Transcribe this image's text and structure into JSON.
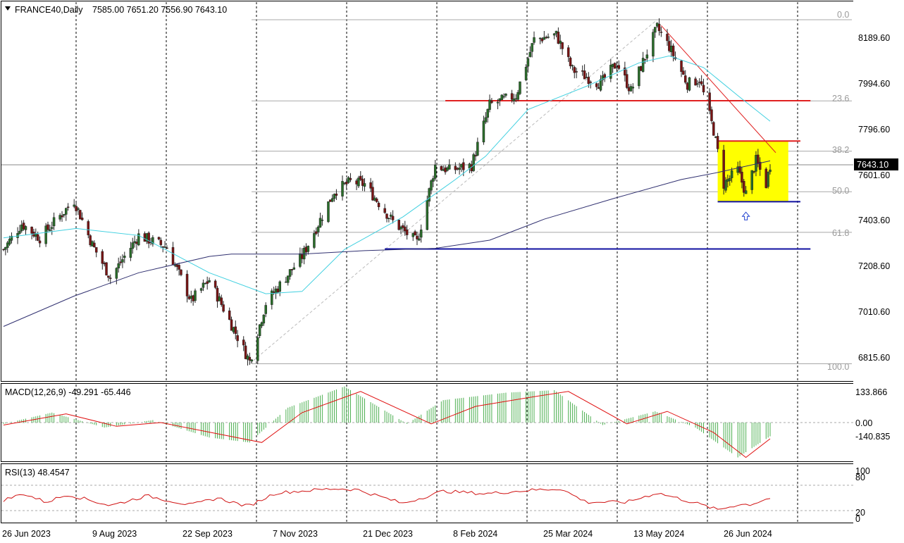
{
  "header": {
    "symbol": "FRANCE40,Daily",
    "ohlc": "7585.00 7651.20 7556.90 7643.10"
  },
  "price_axis": {
    "labels": [
      "8189.60",
      "7994.60",
      "7796.60",
      "7601.60",
      "7403.60",
      "7208.60",
      "7010.60",
      "6815.60"
    ],
    "current_price": "7643.10"
  },
  "fib_levels": [
    "0.0",
    "23.6",
    "38.2",
    "50.0",
    "61.8",
    "100.0"
  ],
  "time_axis": {
    "labels": [
      "26 Jun 2023",
      "9 Aug 2023",
      "22 Sep 2023",
      "7 Nov 2023",
      "21 Dec 2023",
      "8 Feb 2024",
      "25 Mar 2024",
      "13 May 2024",
      "26 Jun 2024"
    ]
  },
  "macd": {
    "label": "MACD(12,26,9) -49.291 -65.446",
    "axis_labels": [
      "133.866",
      "0.00",
      "-140.835"
    ]
  },
  "rsi": {
    "label": "RSI(13) 48.4547",
    "axis_labels": [
      "100",
      "80",
      "20",
      "0"
    ]
  },
  "colors": {
    "bull_candle": "#2a6e2a",
    "bear_candle": "#7a1414",
    "ma_fast": "#40d0e0",
    "ma_slow": "#303070",
    "support_line": "#1010a0",
    "resistance_line": "#e02020",
    "range_box": "#ffff00",
    "macd_hist": "#4caf50",
    "macd_signal": "#e01010",
    "rsi_line": "#d01010",
    "arrow": "#2040d0"
  },
  "chart_data": {
    "type": "candlestick",
    "title": "FRANCE40,Daily",
    "timeframe": "Daily",
    "last_ohlc": {
      "open": 7585.0,
      "high": 7651.2,
      "low": 7556.9,
      "close": 7643.1
    },
    "ylim": [
      6760,
      8290
    ],
    "x_range": [
      "2023-06-26",
      "2024-07-10"
    ],
    "anchor_points": [
      {
        "date": "2023-06-26",
        "price": 7280
      },
      {
        "date": "2023-07-05",
        "price": 7390
      },
      {
        "date": "2023-07-14",
        "price": 7330
      },
      {
        "date": "2023-07-31",
        "price": 7490
      },
      {
        "date": "2023-08-09",
        "price": 7300
      },
      {
        "date": "2023-08-18",
        "price": 7160
      },
      {
        "date": "2023-09-01",
        "price": 7340
      },
      {
        "date": "2023-09-15",
        "price": 7290
      },
      {
        "date": "2023-09-27",
        "price": 7060
      },
      {
        "date": "2023-10-06",
        "price": 7150
      },
      {
        "date": "2023-10-26",
        "price": 6800
      },
      {
        "date": "2023-11-03",
        "price": 7050
      },
      {
        "date": "2023-11-21",
        "price": 7250
      },
      {
        "date": "2023-12-07",
        "price": 7530
      },
      {
        "date": "2023-12-15",
        "price": 7570
      },
      {
        "date": "2023-12-22",
        "price": 7560
      },
      {
        "date": "2024-01-05",
        "price": 7400
      },
      {
        "date": "2024-01-17",
        "price": 7310
      },
      {
        "date": "2024-01-26",
        "price": 7640
      },
      {
        "date": "2024-02-02",
        "price": 7620
      },
      {
        "date": "2024-02-13",
        "price": 7640
      },
      {
        "date": "2024-02-22",
        "price": 7900
      },
      {
        "date": "2024-03-06",
        "price": 7940
      },
      {
        "date": "2024-03-15",
        "price": 8180
      },
      {
        "date": "2024-03-26",
        "price": 8200
      },
      {
        "date": "2024-04-03",
        "price": 8050
      },
      {
        "date": "2024-04-17",
        "price": 7990
      },
      {
        "date": "2024-04-25",
        "price": 8080
      },
      {
        "date": "2024-05-02",
        "price": 7960
      },
      {
        "date": "2024-05-15",
        "price": 8230
      },
      {
        "date": "2024-05-21",
        "price": 8150
      },
      {
        "date": "2024-05-30",
        "price": 7990
      },
      {
        "date": "2024-06-05",
        "price": 8010
      },
      {
        "date": "2024-06-12",
        "price": 7790
      },
      {
        "date": "2024-06-17",
        "price": 7560
      },
      {
        "date": "2024-06-24",
        "price": 7620
      },
      {
        "date": "2024-06-28",
        "price": 7520
      },
      {
        "date": "2024-07-03",
        "price": 7660
      },
      {
        "date": "2024-07-08",
        "price": 7560
      },
      {
        "date": "2024-07-10",
        "price": 7643.1
      }
    ],
    "moving_averages": [
      {
        "name": "fast",
        "color": "#40d0e0",
        "points": [
          {
            "date": "2023-06-26",
            "price": 7330
          },
          {
            "date": "2023-08-01",
            "price": 7370
          },
          {
            "date": "2023-09-01",
            "price": 7340
          },
          {
            "date": "2023-10-06",
            "price": 7180
          },
          {
            "date": "2023-11-03",
            "price": 7090
          },
          {
            "date": "2023-11-21",
            "price": 7100
          },
          {
            "date": "2023-12-12",
            "price": 7280
          },
          {
            "date": "2024-01-10",
            "price": 7420
          },
          {
            "date": "2024-02-05",
            "price": 7580
          },
          {
            "date": "2024-02-20",
            "price": 7680
          },
          {
            "date": "2024-03-12",
            "price": 7880
          },
          {
            "date": "2024-04-10",
            "price": 7980
          },
          {
            "date": "2024-05-06",
            "price": 8080
          },
          {
            "date": "2024-05-21",
            "price": 8110
          },
          {
            "date": "2024-06-07",
            "price": 8060
          },
          {
            "date": "2024-06-24",
            "price": 7940
          },
          {
            "date": "2024-07-10",
            "price": 7830
          }
        ]
      },
      {
        "name": "slow",
        "color": "#303070",
        "points": [
          {
            "date": "2023-06-26",
            "price": 6950
          },
          {
            "date": "2023-07-31",
            "price": 7080
          },
          {
            "date": "2023-09-01",
            "price": 7180
          },
          {
            "date": "2023-10-06",
            "price": 7250
          },
          {
            "date": "2023-10-17",
            "price": 7260
          },
          {
            "date": "2023-11-21",
            "price": 7260
          },
          {
            "date": "2023-12-22",
            "price": 7275
          },
          {
            "date": "2024-01-26",
            "price": 7285
          },
          {
            "date": "2024-02-22",
            "price": 7320
          },
          {
            "date": "2024-03-20",
            "price": 7410
          },
          {
            "date": "2024-04-24",
            "price": 7500
          },
          {
            "date": "2024-05-27",
            "price": 7580
          },
          {
            "date": "2024-06-14",
            "price": 7610
          },
          {
            "date": "2024-07-10",
            "price": 7660
          }
        ]
      }
    ],
    "horizontal_lines": [
      {
        "name": "resistance",
        "price": 7918,
        "from": "2024-01-31",
        "to": "2024-07-30",
        "color": "#e02020"
      },
      {
        "name": "box-top",
        "price": 7745,
        "from": "2024-06-14",
        "to": "2024-07-25",
        "color": "#e02020"
      },
      {
        "name": "box-bottom",
        "price": 7485,
        "from": "2024-06-14",
        "to": "2024-07-25",
        "color": "#1010a0"
      },
      {
        "name": "support",
        "price": 7282,
        "from": "2024-01-01",
        "to": "2024-07-30",
        "color": "#1010a0"
      }
    ],
    "trendline": {
      "from": {
        "date": "2024-05-17",
        "price": 8240
      },
      "to": {
        "date": "2024-07-10",
        "price": 7680
      }
    },
    "range_box": {
      "from": "2024-06-14",
      "to": "2024-07-19",
      "top": 7745,
      "bottom": 7485
    },
    "fibonacci": {
      "high": 8265,
      "low": 6790,
      "levels": [
        {
          "label": "0.0",
          "value": 0
        },
        {
          "label": "23.6",
          "value": 0.236
        },
        {
          "label": "38.2",
          "value": 0.382
        },
        {
          "label": "50.0",
          "value": 0.5
        },
        {
          "label": "61.8",
          "value": 0.618
        },
        {
          "label": "100.0",
          "value": 1.0
        }
      ]
    },
    "macd": {
      "name": "MACD(12,26,9)",
      "main": -49.291,
      "signal": -65.446,
      "ylim": [
        -170,
        160
      ],
      "hist_points": [
        {
          "date": "2023-06-26",
          "v": -5
        },
        {
          "date": "2023-07-20",
          "v": 40
        },
        {
          "date": "2023-08-15",
          "v": -20
        },
        {
          "date": "2023-09-08",
          "v": 10
        },
        {
          "date": "2023-10-06",
          "v": -60
        },
        {
          "date": "2023-10-26",
          "v": -80
        },
        {
          "date": "2023-11-14",
          "v": 60
        },
        {
          "date": "2023-12-12",
          "v": 145
        },
        {
          "date": "2024-01-12",
          "v": -5
        },
        {
          "date": "2024-01-30",
          "v": 90
        },
        {
          "date": "2024-03-01",
          "v": 120
        },
        {
          "date": "2024-03-25",
          "v": 130
        },
        {
          "date": "2024-04-18",
          "v": -10
        },
        {
          "date": "2024-05-14",
          "v": 45
        },
        {
          "date": "2024-06-03",
          "v": -20
        },
        {
          "date": "2024-06-24",
          "v": -140
        },
        {
          "date": "2024-07-10",
          "v": -55
        }
      ],
      "signal_points": [
        {
          "date": "2023-06-26",
          "v": -10
        },
        {
          "date": "2023-07-27",
          "v": 35
        },
        {
          "date": "2023-08-21",
          "v": -15
        },
        {
          "date": "2023-09-12",
          "v": 0
        },
        {
          "date": "2023-10-10",
          "v": -45
        },
        {
          "date": "2023-11-01",
          "v": -80
        },
        {
          "date": "2023-11-21",
          "v": 40
        },
        {
          "date": "2023-12-20",
          "v": 125
        },
        {
          "date": "2024-01-24",
          "v": -5
        },
        {
          "date": "2024-02-15",
          "v": 65
        },
        {
          "date": "2024-03-12",
          "v": 100
        },
        {
          "date": "2024-04-01",
          "v": 125
        },
        {
          "date": "2024-04-30",
          "v": -5
        },
        {
          "date": "2024-05-20",
          "v": 45
        },
        {
          "date": "2024-06-12",
          "v": -40
        },
        {
          "date": "2024-06-28",
          "v": -140
        },
        {
          "date": "2024-07-10",
          "v": -65
        }
      ]
    },
    "rsi": {
      "name": "RSI(13)",
      "value": 48.4547,
      "ylim": [
        0,
        100
      ],
      "levels": [
        80,
        20
      ],
      "points": [
        {
          "date": "2023-06-26",
          "v": 45
        },
        {
          "date": "2023-07-06",
          "v": 60
        },
        {
          "date": "2023-07-17",
          "v": 40
        },
        {
          "date": "2023-07-28",
          "v": 58
        },
        {
          "date": "2023-08-18",
          "v": 32
        },
        {
          "date": "2023-09-05",
          "v": 55
        },
        {
          "date": "2023-09-27",
          "v": 33
        },
        {
          "date": "2023-10-10",
          "v": 50
        },
        {
          "date": "2023-10-25",
          "v": 30
        },
        {
          "date": "2023-11-08",
          "v": 62
        },
        {
          "date": "2023-12-07",
          "v": 72
        },
        {
          "date": "2023-12-18",
          "v": 70
        },
        {
          "date": "2024-01-10",
          "v": 37
        },
        {
          "date": "2024-01-30",
          "v": 66
        },
        {
          "date": "2024-02-20",
          "v": 60
        },
        {
          "date": "2024-03-12",
          "v": 68
        },
        {
          "date": "2024-03-28",
          "v": 72
        },
        {
          "date": "2024-04-10",
          "v": 40
        },
        {
          "date": "2024-04-30",
          "v": 40
        },
        {
          "date": "2024-05-15",
          "v": 62
        },
        {
          "date": "2024-06-03",
          "v": 38
        },
        {
          "date": "2024-06-14",
          "v": 22
        },
        {
          "date": "2024-06-24",
          "v": 34
        },
        {
          "date": "2024-07-01",
          "v": 35
        },
        {
          "date": "2024-07-08",
          "v": 48
        },
        {
          "date": "2024-07-10",
          "v": 48
        }
      ]
    }
  }
}
